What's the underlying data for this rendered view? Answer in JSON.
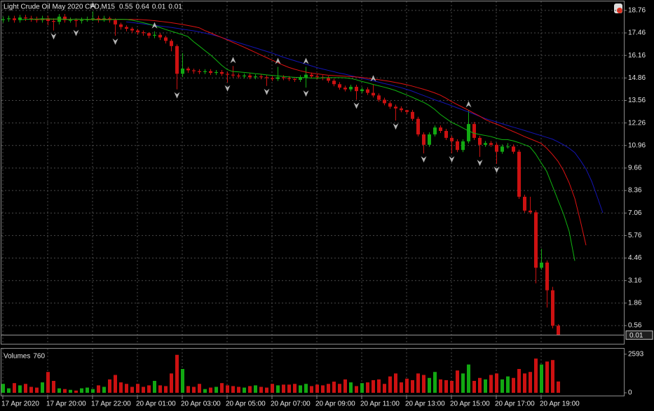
{
  "chart_data": [
    {
      "type": "candlestick",
      "title": "Light Crude Oil May 2020 CFD,M15",
      "categories": [
        "17 Apr 2020",
        null,
        null,
        null,
        null,
        null,
        null,
        null,
        "17 Apr 20:00",
        null,
        null,
        null,
        null,
        null,
        null,
        null,
        "17 Apr 22:00",
        null,
        null,
        null,
        null,
        null,
        null,
        null,
        "20 Apr 01:00",
        null,
        null,
        null,
        null,
        null,
        null,
        null,
        "20 Apr 03:00",
        null,
        null,
        null,
        null,
        null,
        null,
        null,
        "20 Apr 05:00",
        null,
        null,
        null,
        null,
        null,
        null,
        null,
        "20 Apr 07:00",
        null,
        null,
        null,
        null,
        null,
        null,
        null,
        "20 Apr 09:00",
        null,
        null,
        null,
        null,
        null,
        null,
        null,
        "20 Apr 11:00",
        null,
        null,
        null,
        null,
        null,
        null,
        null,
        "20 Apr 13:00",
        null,
        null,
        null,
        null,
        null,
        null,
        null,
        "20 Apr 15:00",
        null,
        null,
        null,
        null,
        null,
        null,
        null,
        "20 Apr 17:00",
        null,
        null,
        null,
        null,
        null,
        null,
        null,
        "20 Apr 19:00",
        null,
        null,
        null
      ],
      "open": [
        18.2,
        18.25,
        18.3,
        18.2,
        18.35,
        18.3,
        18.25,
        18.2,
        18.3,
        18.15,
        18.1,
        18.4,
        18.2,
        18.2,
        18.15,
        18.2,
        18.25,
        18.3,
        18.2,
        18.3,
        18.2,
        17.95,
        17.8,
        17.7,
        17.6,
        17.5,
        17.45,
        17.3,
        17.35,
        17.2,
        17.0,
        16.7,
        15.1,
        15.4,
        15.3,
        15.25,
        15.2,
        15.25,
        15.15,
        15.2,
        15.1,
        15.05,
        15.0,
        14.95,
        15.0,
        14.9,
        14.95,
        14.9,
        14.85,
        14.8,
        14.9,
        14.85,
        14.8,
        14.75,
        14.9,
        15.05,
        14.95,
        14.9,
        14.85,
        14.7,
        14.5,
        14.3,
        14.2,
        14.35,
        14.1,
        14.2,
        14.0,
        13.85,
        13.6,
        13.4,
        13.2,
        13.1,
        13.0,
        12.9,
        12.5,
        11.6,
        11.0,
        11.6,
        12.0,
        11.8,
        11.4,
        11.2,
        10.7,
        11.2,
        12.2,
        11.4,
        11.0,
        11.1,
        11.0,
        10.6,
        10.9,
        10.9,
        10.6,
        8.0,
        7.2,
        7.1,
        3.9,
        4.2,
        2.6,
        0.55
      ],
      "high": [
        18.4,
        18.45,
        18.45,
        18.5,
        18.5,
        18.45,
        18.4,
        18.45,
        18.45,
        18.3,
        18.55,
        18.55,
        18.35,
        18.3,
        18.35,
        18.4,
        18.7,
        18.45,
        18.45,
        18.4,
        18.3,
        18.05,
        17.9,
        17.8,
        17.7,
        17.6,
        17.5,
        17.55,
        17.45,
        17.3,
        17.1,
        16.8,
        16.3,
        15.5,
        15.4,
        15.37,
        15.37,
        15.37,
        15.32,
        15.32,
        15.22,
        15.55,
        15.12,
        15.12,
        15.12,
        15.07,
        15.07,
        15.02,
        14.97,
        15.5,
        15.02,
        14.97,
        14.92,
        15.02,
        15.5,
        15.17,
        15.07,
        15.02,
        14.97,
        14.82,
        14.62,
        14.42,
        14.47,
        14.47,
        14.32,
        14.32,
        14.5,
        13.97,
        13.72,
        13.52,
        13.32,
        13.22,
        13.02,
        13.02,
        12.62,
        11.72,
        11.72,
        12.12,
        12.12,
        11.92,
        11.52,
        11.32,
        11.32,
        13.0,
        12.32,
        11.52,
        11.22,
        11.22,
        11.12,
        11.02,
        11.1,
        11.02,
        10.72,
        8.12,
        8.0,
        7.22,
        5.0,
        4.32,
        2.8,
        0.64
      ],
      "low": [
        18.05,
        18.1,
        18.05,
        18.05,
        18.15,
        18.1,
        18.05,
        18.05,
        17.9,
        17.6,
        17.95,
        18.05,
        18.05,
        17.8,
        18.0,
        18.1,
        18.15,
        18.05,
        18.1,
        18.05,
        17.3,
        17.65,
        17.55,
        17.45,
        17.35,
        17.3,
        17.15,
        17.15,
        17.05,
        16.85,
        16.4,
        14.2,
        14.9,
        15.15,
        15.1,
        15.08,
        15.08,
        15.03,
        15.03,
        14.98,
        14.6,
        14.88,
        14.83,
        14.83,
        14.78,
        14.78,
        14.78,
        14.4,
        14.68,
        14.68,
        14.73,
        14.68,
        14.63,
        14.63,
        14.3,
        14.83,
        14.78,
        14.73,
        14.58,
        14.38,
        14.18,
        14.08,
        14.08,
        13.6,
        13.98,
        13.88,
        13.73,
        13.48,
        13.28,
        13.08,
        12.4,
        12.88,
        12.78,
        12.38,
        11.48,
        10.5,
        10.88,
        11.48,
        11.68,
        11.28,
        10.5,
        10.58,
        10.58,
        11.08,
        11.28,
        10.3,
        10.88,
        10.88,
        9.9,
        10.48,
        10.78,
        10.48,
        7.88,
        7.08,
        7.0,
        3.0,
        3.78,
        1.6,
        0.4,
        0.01
      ],
      "close": [
        18.25,
        18.3,
        18.2,
        18.35,
        18.3,
        18.25,
        18.2,
        18.3,
        18.15,
        18.1,
        18.4,
        18.2,
        18.2,
        18.15,
        18.2,
        18.25,
        18.3,
        18.2,
        18.3,
        18.2,
        17.95,
        17.8,
        17.7,
        17.6,
        17.5,
        17.45,
        17.3,
        17.35,
        17.2,
        17.0,
        16.7,
        15.1,
        15.4,
        15.3,
        15.25,
        15.2,
        15.25,
        15.15,
        15.2,
        15.1,
        15.05,
        15.0,
        14.95,
        15.0,
        14.9,
        14.95,
        14.9,
        14.85,
        14.8,
        14.9,
        14.85,
        14.8,
        14.75,
        14.9,
        15.05,
        14.95,
        14.9,
        14.85,
        14.7,
        14.5,
        14.3,
        14.2,
        14.35,
        14.1,
        14.2,
        14.0,
        13.85,
        13.6,
        13.4,
        13.2,
        13.1,
        13.0,
        12.9,
        12.5,
        11.6,
        11.0,
        11.6,
        12.0,
        11.8,
        11.4,
        11.2,
        10.7,
        11.2,
        12.2,
        11.4,
        11.0,
        11.1,
        11.0,
        10.6,
        10.9,
        10.9,
        10.6,
        8.0,
        7.2,
        7.1,
        3.9,
        4.2,
        2.6,
        0.55,
        0.01
      ],
      "up_color": "#12a812",
      "down_color": "#cc1111",
      "ylim": [
        -0.49,
        19.28
      ],
      "yticks": [
        0.56,
        1.86,
        3.16,
        4.46,
        5.76,
        7.06,
        8.36,
        9.66,
        10.96,
        12.26,
        13.56,
        14.86,
        16.16,
        17.46,
        18.76
      ],
      "grid": true,
      "moving_averages": [
        {
          "color": "#1414b4",
          "shift": 8,
          "values": [
            null,
            null,
            null,
            null,
            null,
            null,
            null,
            null,
            null,
            null,
            null,
            null,
            null,
            null,
            18.1,
            18.06,
            18.02,
            17.98,
            17.94,
            17.9,
            17.86,
            17.82,
            17.78,
            17.73,
            17.68,
            17.63,
            17.58,
            17.52,
            17.45,
            17.38,
            17.3,
            17.2,
            17.1,
            17.0,
            16.9,
            16.8,
            16.7,
            16.6,
            16.5,
            16.4,
            16.3,
            16.18,
            16.06,
            15.96,
            15.86,
            15.76,
            15.66,
            15.56,
            15.46,
            15.38,
            15.3,
            15.22,
            15.14,
            15.08,
            15.0,
            14.92,
            14.85,
            14.77,
            14.7,
            14.62,
            14.54,
            14.47,
            14.38,
            14.3,
            14.2,
            14.1,
            13.97,
            13.85,
            13.73,
            13.6,
            13.5,
            13.38,
            13.26,
            13.14,
            13.02,
            12.9,
            12.78,
            12.65,
            12.52,
            12.42,
            12.32,
            12.22,
            12.12,
            12.02,
            11.93,
            11.83,
            11.73,
            11.63,
            11.53,
            11.43,
            11.33,
            11.17,
            11.0,
            10.8,
            10.55,
            10.1,
            9.6,
            8.9,
            8.0,
            7.07
          ]
        },
        {
          "color": "#dd1212",
          "shift": 5,
          "values": [
            18.24,
            18.24,
            18.24,
            18.25,
            18.25,
            18.25,
            18.25,
            18.25,
            18.25,
            18.24,
            18.25,
            18.25,
            18.25,
            18.25,
            18.25,
            18.24,
            18.24,
            18.24,
            18.24,
            18.24,
            18.22,
            18.2,
            18.17,
            18.13,
            18.09,
            18.05,
            18.0,
            17.95,
            17.89,
            17.83,
            17.76,
            17.6,
            17.47,
            17.33,
            17.2,
            17.06,
            16.92,
            16.78,
            16.64,
            16.49,
            16.34,
            16.19,
            16.04,
            15.89,
            15.75,
            15.6,
            15.47,
            15.37,
            15.28,
            15.2,
            15.14,
            15.1,
            15.06,
            15.02,
            15.0,
            14.98,
            14.96,
            14.94,
            14.92,
            14.89,
            14.85,
            14.8,
            14.76,
            14.71,
            14.66,
            14.6,
            14.54,
            14.47,
            14.39,
            14.3,
            14.21,
            14.11,
            14.0,
            13.87,
            13.7,
            13.5,
            13.33,
            13.17,
            13.0,
            12.83,
            12.66,
            12.47,
            12.32,
            12.2,
            12.06,
            11.91,
            11.77,
            11.63,
            11.48,
            11.35,
            11.22,
            11.08,
            10.8,
            10.45,
            10.05,
            9.5,
            8.8,
            7.9,
            6.6,
            5.2
          ]
        },
        {
          "color": "#10b410",
          "shift": 3,
          "values": [
            18.22,
            18.24,
            18.25,
            18.26,
            18.27,
            18.27,
            18.26,
            18.27,
            18.25,
            18.23,
            18.26,
            18.25,
            18.24,
            18.23,
            18.22,
            18.22,
            18.23,
            18.24,
            18.25,
            18.24,
            18.2,
            18.13,
            18.05,
            17.97,
            17.88,
            17.78,
            17.66,
            17.56,
            17.46,
            17.36,
            17.25,
            16.96,
            16.71,
            16.45,
            16.2,
            15.91,
            15.6,
            15.35,
            15.23,
            15.21,
            15.18,
            15.15,
            15.11,
            15.08,
            15.04,
            15.01,
            14.98,
            14.95,
            14.92,
            14.9,
            14.89,
            14.88,
            14.86,
            14.85,
            14.87,
            14.88,
            14.88,
            14.88,
            14.87,
            14.83,
            14.76,
            14.66,
            14.58,
            14.49,
            14.41,
            14.33,
            14.24,
            14.14,
            14.01,
            13.88,
            13.75,
            13.6,
            13.46,
            13.28,
            13.05,
            12.76,
            12.53,
            12.3,
            12.15,
            11.98,
            11.81,
            11.67,
            11.6,
            11.54,
            11.48,
            11.38,
            11.3,
            11.3,
            11.23,
            11.13,
            11.01,
            10.88,
            10.48,
            9.96,
            9.46,
            8.64,
            7.81,
            7.0,
            6.0,
            4.3
          ]
        }
      ],
      "fractals": {
        "color": "#b4b4b4",
        "up": [
          {
            "x": 16,
            "y": 18.7
          },
          {
            "x": 27,
            "y": 17.55
          },
          {
            "x": 41,
            "y": 15.55
          },
          {
            "x": 49,
            "y": 15.5
          },
          {
            "x": 54,
            "y": 15.5
          },
          {
            "x": 66,
            "y": 14.5
          },
          {
            "x": 83,
            "y": 13.0
          }
        ],
        "down": [
          {
            "x": 9,
            "y": 17.6
          },
          {
            "x": 13,
            "y": 17.8
          },
          {
            "x": 20,
            "y": 17.3
          },
          {
            "x": 31,
            "y": 14.2
          },
          {
            "x": 40,
            "y": 14.6
          },
          {
            "x": 47,
            "y": 14.4
          },
          {
            "x": 54,
            "y": 14.3
          },
          {
            "x": 63,
            "y": 13.6
          },
          {
            "x": 70,
            "y": 12.4
          },
          {
            "x": 75,
            "y": 10.5
          },
          {
            "x": 80,
            "y": 10.5
          },
          {
            "x": 85,
            "y": 10.3
          },
          {
            "x": 88,
            "y": 9.9
          }
        ]
      }
    },
    {
      "type": "bar",
      "title": "Volumes",
      "values": [
        600,
        300,
        650,
        500,
        600,
        400,
        350,
        700,
        1400,
        800,
        300,
        250,
        200,
        150,
        300,
        350,
        250,
        500,
        400,
        900,
        1200,
        700,
        600,
        400,
        600,
        400,
        500,
        800,
        500,
        450,
        1300,
        2550,
        1600,
        450,
        400,
        600,
        250,
        350,
        400,
        650,
        500,
        450,
        400,
        350,
        450,
        500,
        400,
        350,
        600,
        500,
        550,
        550,
        600,
        500,
        600,
        450,
        550,
        500,
        600,
        750,
        600,
        900,
        700,
        450,
        650,
        700,
        850,
        900,
        600,
        1100,
        1300,
        700,
        950,
        850,
        1300,
        1200,
        1000,
        1400,
        900,
        850,
        800,
        1500,
        1300,
        1900,
        800,
        1000,
        900,
        1200,
        1300,
        900,
        1100,
        1000,
        1600,
        1300,
        1400,
        2300,
        1900,
        2100,
        2200,
        760
      ],
      "ylim": [
        0,
        2963
      ],
      "yticks": [
        0,
        2593
      ]
    }
  ]
}
